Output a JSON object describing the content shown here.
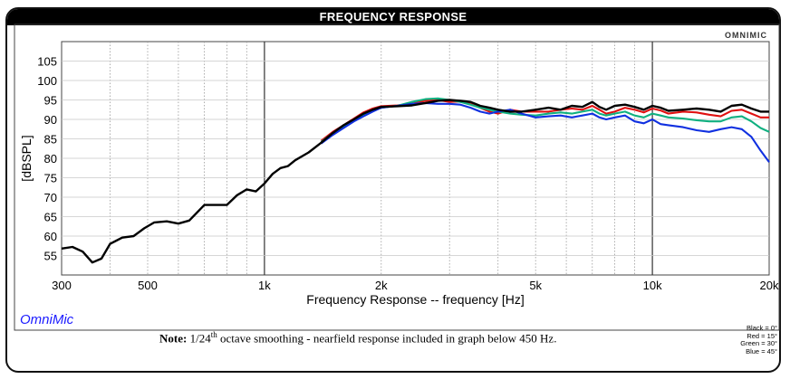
{
  "title": "FREQUENCY RESPONSE",
  "brand": "OmniMic",
  "watermark": "OMNIMIC",
  "note": {
    "label": "Note:",
    "text_a": "1/24",
    "text_sup": "th",
    "text_b": " octave smoothing - nearfield response included in graph below 450 Hz."
  },
  "legend": [
    "Black = 0°",
    "Red = 15°",
    "Green = 30°",
    "Blue = 45°"
  ],
  "colors": {
    "black": "#000000",
    "red": "#e01010",
    "green": "#10b080",
    "blue": "#1030e0"
  },
  "chart_data": {
    "type": "line",
    "xscale": "log",
    "xlim": [
      300,
      20000
    ],
    "ylim": [
      50,
      110
    ],
    "ylabel": "[dBSPL]",
    "xlabel": "Frequency Response -- frequency [Hz]",
    "yticks": [
      55,
      60,
      65,
      70,
      75,
      80,
      85,
      90,
      95,
      100,
      105
    ],
    "xticks": [
      {
        "v": 300,
        "label": "300"
      },
      {
        "v": 500,
        "label": "500"
      },
      {
        "v": 1000,
        "label": "1k"
      },
      {
        "v": 2000,
        "label": "2k"
      },
      {
        "v": 5000,
        "label": "5k"
      },
      {
        "v": 10000,
        "label": "10k"
      },
      {
        "v": 20000,
        "label": "20k"
      }
    ],
    "grid": true,
    "series": [
      {
        "name": "Black = 0°",
        "color": "#000000",
        "points": [
          [
            300,
            56.8
          ],
          [
            320,
            57.2
          ],
          [
            340,
            56.0
          ],
          [
            360,
            53.2
          ],
          [
            380,
            54.2
          ],
          [
            400,
            58.0
          ],
          [
            430,
            59.6
          ],
          [
            460,
            60.0
          ],
          [
            490,
            62.0
          ],
          [
            520,
            63.5
          ],
          [
            560,
            63.8
          ],
          [
            600,
            63.2
          ],
          [
            640,
            64.0
          ],
          [
            700,
            68.0
          ],
          [
            760,
            68.0
          ],
          [
            800,
            68.0
          ],
          [
            850,
            70.5
          ],
          [
            900,
            72.0
          ],
          [
            950,
            71.5
          ],
          [
            1000,
            73.5
          ],
          [
            1050,
            76.0
          ],
          [
            1100,
            77.5
          ],
          [
            1150,
            78.0
          ],
          [
            1200,
            79.5
          ],
          [
            1300,
            81.5
          ],
          [
            1400,
            84.0
          ],
          [
            1500,
            86.5
          ],
          [
            1600,
            88.5
          ],
          [
            1700,
            90.0
          ],
          [
            1800,
            91.5
          ],
          [
            1900,
            92.5
          ],
          [
            2000,
            93.2
          ],
          [
            2200,
            93.4
          ],
          [
            2400,
            93.6
          ],
          [
            2600,
            94.2
          ],
          [
            2800,
            94.8
          ],
          [
            3000,
            95.0
          ],
          [
            3200,
            94.8
          ],
          [
            3400,
            94.5
          ],
          [
            3600,
            93.5
          ],
          [
            3800,
            93.0
          ],
          [
            4000,
            92.5
          ],
          [
            4300,
            92.0
          ],
          [
            4600,
            92.0
          ],
          [
            5000,
            92.5
          ],
          [
            5400,
            93.0
          ],
          [
            5800,
            92.5
          ],
          [
            6200,
            93.5
          ],
          [
            6600,
            93.2
          ],
          [
            7000,
            94.5
          ],
          [
            7300,
            93.2
          ],
          [
            7600,
            92.5
          ],
          [
            8000,
            93.5
          ],
          [
            8500,
            93.8
          ],
          [
            9000,
            93.2
          ],
          [
            9500,
            92.5
          ],
          [
            10000,
            93.5
          ],
          [
            10500,
            93.0
          ],
          [
            11000,
            92.2
          ],
          [
            12000,
            92.5
          ],
          [
            13000,
            92.8
          ],
          [
            14000,
            92.5
          ],
          [
            15000,
            92.0
          ],
          [
            16000,
            93.5
          ],
          [
            17000,
            93.8
          ],
          [
            18000,
            92.8
          ],
          [
            19000,
            92.0
          ],
          [
            20000,
            92.0
          ]
        ]
      },
      {
        "name": "Red = 15°",
        "color": "#e01010",
        "points": [
          [
            1400,
            84.5
          ],
          [
            1500,
            86.8
          ],
          [
            1600,
            88.5
          ],
          [
            1700,
            90.2
          ],
          [
            1800,
            91.8
          ],
          [
            1900,
            92.8
          ],
          [
            2000,
            93.4
          ],
          [
            2200,
            93.6
          ],
          [
            2400,
            94.0
          ],
          [
            2600,
            94.8
          ],
          [
            2800,
            95.0
          ],
          [
            3000,
            94.5
          ],
          [
            3200,
            94.6
          ],
          [
            3400,
            94.0
          ],
          [
            3600,
            93.0
          ],
          [
            3800,
            92.0
          ],
          [
            4000,
            91.5
          ],
          [
            4300,
            92.5
          ],
          [
            4600,
            92.0
          ],
          [
            5000,
            92.0
          ],
          [
            5400,
            92.0
          ],
          [
            5800,
            92.5
          ],
          [
            6200,
            92.8
          ],
          [
            6600,
            92.5
          ],
          [
            7000,
            93.5
          ],
          [
            7300,
            92.5
          ],
          [
            7600,
            91.5
          ],
          [
            8000,
            92.0
          ],
          [
            8500,
            93.0
          ],
          [
            9000,
            92.5
          ],
          [
            9500,
            91.8
          ],
          [
            10000,
            92.8
          ],
          [
            10500,
            92.3
          ],
          [
            11000,
            91.5
          ],
          [
            12000,
            92.0
          ],
          [
            13000,
            91.8
          ],
          [
            14000,
            91.2
          ],
          [
            15000,
            90.8
          ],
          [
            16000,
            92.2
          ],
          [
            17000,
            92.5
          ],
          [
            18000,
            91.5
          ],
          [
            19000,
            90.5
          ],
          [
            20000,
            90.5
          ]
        ]
      },
      {
        "name": "Green = 30°",
        "color": "#10b080",
        "points": [
          [
            1400,
            84.2
          ],
          [
            1500,
            86.5
          ],
          [
            1600,
            88.2
          ],
          [
            1700,
            89.8
          ],
          [
            1800,
            91.2
          ],
          [
            1900,
            92.3
          ],
          [
            2000,
            93.0
          ],
          [
            2200,
            93.5
          ],
          [
            2400,
            94.5
          ],
          [
            2600,
            95.2
          ],
          [
            2800,
            95.4
          ],
          [
            3000,
            95.0
          ],
          [
            3200,
            94.5
          ],
          [
            3400,
            93.8
          ],
          [
            3600,
            93.0
          ],
          [
            3800,
            92.5
          ],
          [
            4000,
            92.0
          ],
          [
            4300,
            91.5
          ],
          [
            4600,
            91.2
          ],
          [
            5000,
            91.0
          ],
          [
            5400,
            91.5
          ],
          [
            5800,
            91.8
          ],
          [
            6200,
            91.5
          ],
          [
            6600,
            92.0
          ],
          [
            7000,
            92.5
          ],
          [
            7300,
            91.5
          ],
          [
            7600,
            91.0
          ],
          [
            8000,
            91.5
          ],
          [
            8500,
            92.0
          ],
          [
            9000,
            91.0
          ],
          [
            9500,
            90.5
          ],
          [
            10000,
            91.5
          ],
          [
            10500,
            91.0
          ],
          [
            11000,
            90.5
          ],
          [
            12000,
            90.2
          ],
          [
            13000,
            89.8
          ],
          [
            14000,
            89.5
          ],
          [
            15000,
            89.5
          ],
          [
            16000,
            90.5
          ],
          [
            17000,
            90.8
          ],
          [
            18000,
            89.5
          ],
          [
            19000,
            87.8
          ],
          [
            20000,
            86.8
          ]
        ]
      },
      {
        "name": "Blue = 45°",
        "color": "#1030e0",
        "points": [
          [
            1400,
            83.8
          ],
          [
            1500,
            86.0
          ],
          [
            1600,
            87.8
          ],
          [
            1700,
            89.5
          ],
          [
            1800,
            90.8
          ],
          [
            1900,
            92.0
          ],
          [
            2000,
            93.0
          ],
          [
            2200,
            93.5
          ],
          [
            2400,
            94.0
          ],
          [
            2600,
            94.2
          ],
          [
            2800,
            94.0
          ],
          [
            3000,
            94.0
          ],
          [
            3200,
            93.8
          ],
          [
            3400,
            93.0
          ],
          [
            3600,
            92.0
          ],
          [
            3800,
            91.5
          ],
          [
            4000,
            92.0
          ],
          [
            4300,
            92.5
          ],
          [
            4600,
            91.5
          ],
          [
            5000,
            90.5
          ],
          [
            5400,
            90.8
          ],
          [
            5800,
            91.0
          ],
          [
            6200,
            90.5
          ],
          [
            6600,
            91.0
          ],
          [
            7000,
            91.5
          ],
          [
            7300,
            90.5
          ],
          [
            7600,
            90.0
          ],
          [
            8000,
            90.5
          ],
          [
            8500,
            91.0
          ],
          [
            9000,
            89.5
          ],
          [
            9500,
            89.0
          ],
          [
            10000,
            90.0
          ],
          [
            10500,
            88.8
          ],
          [
            11000,
            88.5
          ],
          [
            12000,
            88.0
          ],
          [
            13000,
            87.2
          ],
          [
            14000,
            86.8
          ],
          [
            15000,
            87.5
          ],
          [
            16000,
            88.0
          ],
          [
            17000,
            87.5
          ],
          [
            18000,
            85.5
          ],
          [
            19000,
            82.0
          ],
          [
            20000,
            79.0
          ]
        ]
      }
    ]
  }
}
